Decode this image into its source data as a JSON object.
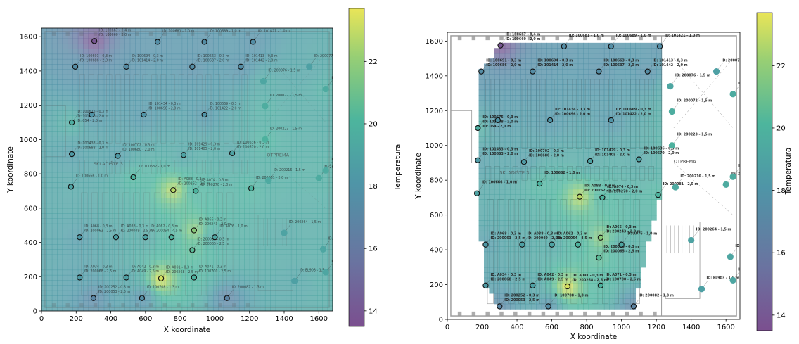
{
  "chart_data": [
    {
      "type": "heatmap",
      "title": "",
      "xlabel": "X koordinate",
      "ylabel": "Y koordinate",
      "xlim": [
        0,
        1680
      ],
      "ylim": [
        0,
        1650
      ],
      "xticks": [
        0,
        200,
        400,
        600,
        800,
        1000,
        1200,
        1400,
        1600
      ],
      "yticks": [
        0,
        200,
        400,
        600,
        800,
        1000,
        1200,
        1400,
        1600
      ],
      "interpolation_extent": "full",
      "colorbar_label": "Temperatura",
      "colorbar_range": [
        13.5,
        23.7
      ],
      "colorbar_ticks": [
        14,
        16,
        18,
        20,
        22
      ],
      "sensors": [
        {
          "x": 305,
          "y": 1575,
          "t": 13.9,
          "label": "ID: 100667 - 0,4 m\nID: 100660 - 2,0 m"
        },
        {
          "x": 670,
          "y": 1570,
          "t": 17.6,
          "label": "ID: 100681 - 1,0 m"
        },
        {
          "x": 940,
          "y": 1570,
          "t": 17.6,
          "label": "ID: 100689 - 1,0 m"
        },
        {
          "x": 1220,
          "y": 1570,
          "t": 17.6,
          "label": "ID: 101421 - 1,0 m"
        },
        {
          "x": 195,
          "y": 1425,
          "t": 17.5,
          "label": "ID: 100691 - 0,3 m\nID: 100686 - 2,0 m"
        },
        {
          "x": 490,
          "y": 1425,
          "t": 17.5,
          "label": "ID: 100694 - 0,3 m\nID: 101414 - 2,0 m"
        },
        {
          "x": 870,
          "y": 1425,
          "t": 17.5,
          "label": "ID: 100663 - 0,3 m\nID: 100637 - 2,0 m"
        },
        {
          "x": 1150,
          "y": 1425,
          "t": 17.5,
          "label": "ID: 101413 - 0,3 m\nID: 101442 - 2,0 m"
        },
        {
          "x": 1545,
          "y": 1425,
          "t": 18.8,
          "label": "ID: 200077 - 1,5 m"
        },
        {
          "x": 1280,
          "y": 1340,
          "t": 19.2,
          "label": "ID: 200076 - 1,5 m"
        },
        {
          "x": 1640,
          "y": 1295,
          "t": 19.5,
          "label": "ID: 200083 - 1,5 m"
        },
        {
          "x": 1290,
          "y": 1195,
          "t": 19.6,
          "label": "ID: 200072 - 1,5 m"
        },
        {
          "x": 290,
          "y": 1145,
          "t": 18.0,
          "label": ""
        },
        {
          "x": 590,
          "y": 1145,
          "t": 18.0,
          "label": "ID: 101434 - 0,3 m\nID: 100696 - 2,0 m"
        },
        {
          "x": 940,
          "y": 1145,
          "t": 18.0,
          "label": "ID: 100669 - 0,3 m\nID: 101422 - 2,0 m"
        },
        {
          "x": 175,
          "y": 1100,
          "t": 19.6,
          "label": "ID: 100675 - 0,3 m\nID: 101438 - 2,0 m\nID: 054 - 2,0 m"
        },
        {
          "x": 1290,
          "y": 1000,
          "t": 19.9,
          "label": "ID: 200223 - 1,5 m"
        },
        {
          "x": 175,
          "y": 915,
          "t": 18.4,
          "label": "ID: 101433 - 0,3 m\nID: 100683 - 2,0 m"
        },
        {
          "x": 440,
          "y": 905,
          "t": 18.4,
          "label": "ID: 100702 - 0,3 m\nID: 100680 - 2,0 m"
        },
        {
          "x": 820,
          "y": 910,
          "t": 18.9,
          "label": "ID: 101429 - 0,3 m\nID: 101405 - 2,0 m"
        },
        {
          "x": 1100,
          "y": 920,
          "t": 18.9,
          "label": "ID: 100636 - 0,3 m\nID: 100670 - 2,0 m"
        },
        {
          "x": 1640,
          "y": 820,
          "t": 19.5,
          "label": "ID: 200060 - 1,5 m"
        },
        {
          "x": 1600,
          "y": 775,
          "t": 19.5,
          "label": "ID: 200061 - 1,5 m"
        },
        {
          "x": 1310,
          "y": 760,
          "t": 19.4,
          "label": "ID: 200216 - 1,5 m"
        },
        {
          "x": 170,
          "y": 725,
          "t": 19.0,
          "label": "ID: 100666 - 1,0 m"
        },
        {
          "x": 530,
          "y": 780,
          "t": 20.0,
          "label": "ID: 100682 - 1,0 m"
        },
        {
          "x": 760,
          "y": 705,
          "t": 22.8,
          "label": "ID: A088 - 0,3 m\nID: 200262 - 2,5 m"
        },
        {
          "x": 890,
          "y": 700,
          "t": 20.0,
          "label": "ID: A074 - 0,3 m\nID: 200270 - 2,0 m"
        },
        {
          "x": 1210,
          "y": 715,
          "t": 20.0,
          "label": "ID: 200081 - 2,0 m"
        },
        {
          "x": 880,
          "y": 470,
          "t": 21.8,
          "label": "ID: A065 - 0,3 m\nID: 200243 - 2,0 m"
        },
        {
          "x": 1400,
          "y": 455,
          "t": 19.0,
          "label": "ID: 200264 - 1,5 m"
        },
        {
          "x": 220,
          "y": 430,
          "t": 18.3,
          "label": "ID: A068 - 0,3 m\nID: 200063 - 2,5 m"
        },
        {
          "x": 430,
          "y": 430,
          "t": 18.8,
          "label": "ID: A038 - 0,3 m\nID: 200049 - 2,5 m"
        },
        {
          "x": 600,
          "y": 430,
          "t": 19.0,
          "label": "ID: A062 - 0,3 m\nID: 200054 - 4,5 m"
        },
        {
          "x": 750,
          "y": 430,
          "t": 20.0,
          "label": ""
        },
        {
          "x": 1000,
          "y": 430,
          "t": 19.2,
          "label": "ID: A076 - 1,0 m"
        },
        {
          "x": 1625,
          "y": 360,
          "t": 19.2,
          "label": "ID: 200213 - 1,5 m"
        },
        {
          "x": 870,
          "y": 355,
          "t": 20.5,
          "label": "ID: 200066 - 0,3 m\nID: 200065 - 2,5 m"
        },
        {
          "x": 1640,
          "y": 225,
          "t": 19.2,
          "label": "ID: 200092 - 1,5 m"
        },
        {
          "x": 220,
          "y": 195,
          "t": 18.4,
          "label": "ID: A034 - 0,3 m\nID: 200068 - 2,5 m"
        },
        {
          "x": 490,
          "y": 195,
          "t": 18.8,
          "label": "ID: A042 - 0,3 m\nID: A049 - 2,5 m"
        },
        {
          "x": 690,
          "y": 190,
          "t": 23.3,
          "label": "ID: A091 - 0,3 m\nID: 200268 - 2,5 m"
        },
        {
          "x": 880,
          "y": 195,
          "t": 20.0,
          "label": "ID: A071 - 0,3 m\nID: 100700 - 2,5 m"
        },
        {
          "x": 1460,
          "y": 175,
          "t": 18.8,
          "label": "ID: EL903 - 1,5 m"
        },
        {
          "x": 300,
          "y": 75,
          "t": 17.0,
          "label": "ID: 200252 - 0,3 m\nID: 200053 - 2,5 m"
        },
        {
          "x": 580,
          "y": 75,
          "t": 17.5,
          "label": "ID: 100708 - 1,3 m"
        },
        {
          "x": 1070,
          "y": 75,
          "t": 16.8,
          "label": "ID: 200082 - 1,3 m"
        }
      ],
      "map_labels": [
        "SKLADIŠTE 3",
        "OTPREMA"
      ]
    },
    {
      "type": "heatmap",
      "title": "",
      "xlabel": "X koordinate",
      "ylabel": "Y koordinate",
      "xlim": [
        0,
        1680
      ],
      "ylim": [
        0,
        1650
      ],
      "xticks": [
        0,
        200,
        400,
        600,
        800,
        1000,
        1200,
        1400,
        1600
      ],
      "yticks": [
        0,
        200,
        400,
        600,
        800,
        1000,
        1200,
        1400,
        1600
      ],
      "interpolation_extent": "convex hull of interior sensors",
      "colorbar_label": "Temperatura",
      "colorbar_range": [
        13.5,
        23.7
      ],
      "colorbar_ticks": [
        14,
        16,
        18,
        20,
        22
      ],
      "sensors_ref": 0,
      "map_labels": [
        "SKLADIŠTE 3",
        "OTPREMA"
      ]
    }
  ]
}
